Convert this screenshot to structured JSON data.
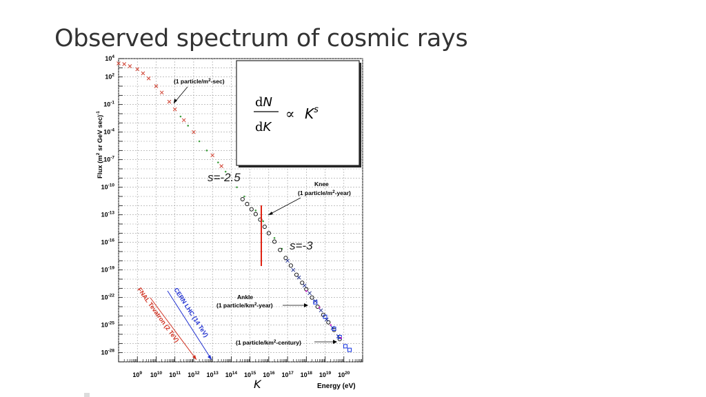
{
  "slide": {
    "title": "Observed spectrum of cosmic rays"
  },
  "chart_data": {
    "type": "scatter",
    "title": "",
    "xlabel": "Energy (eV)",
    "ylabel": "Flux (m² sr GeV sec)⁻¹",
    "x_scale": "log",
    "y_scale": "log",
    "xlim": [
      100000000.0,
      1e+21
    ],
    "ylim": [
      1e-29,
      10000.0
    ],
    "grid": true,
    "x_ticks": [
      "10^9",
      "10^10",
      "10^11",
      "10^12",
      "10^13",
      "10^14",
      "10^15",
      "10^16",
      "10^17",
      "10^18",
      "10^19",
      "10^20"
    ],
    "y_ticks": [
      "10^4",
      "10^2",
      "10^-1",
      "10^-4",
      "10^-7",
      "10^-10",
      "10^-13",
      "10^-16",
      "10^-19",
      "10^-22",
      "10^-25",
      "10^-28"
    ],
    "x_symbol": "K",
    "series": [
      {
        "color": "#d04030",
        "marker": "x",
        "points": [
          [
            100000000.0,
            3000
          ],
          [
            200000000.0,
            2500
          ],
          [
            400000000.0,
            1500
          ],
          [
            1000000000.0,
            700
          ],
          [
            2000000000.0,
            250
          ],
          [
            4000000000.0,
            70
          ],
          [
            10000000000.0,
            10
          ],
          [
            20000000000.0,
            2
          ],
          [
            50000000000.0,
            0.2
          ],
          [
            100000000000.0,
            0.03
          ],
          [
            300000000000.0,
            0.002
          ],
          [
            1000000000000.0,
            0.0001
          ],
          [
            10000000000000.0,
            3e-07
          ],
          [
            30000000000000.0,
            2e-08
          ]
        ]
      },
      {
        "color": "#40a040",
        "marker": "dot",
        "points": [
          [
            200000000000.0,
            0.005
          ],
          [
            500000000000.0,
            0.0005
          ],
          [
            2000000000000.0,
            1e-05
          ],
          [
            5000000000000.0,
            1e-06
          ],
          [
            20000000000000.0,
            5e-08
          ],
          [
            50000000000000.0,
            5e-09
          ],
          [
            200000000000000.0,
            1e-10
          ],
          [
            500000000000000.0,
            1e-11
          ],
          [
            2000000000000000.0,
            3e-13
          ],
          [
            5000000000000000.0,
            2e-14
          ],
          [
            2e+16,
            3e-16
          ],
          [
            5e+16,
            2e-17
          ]
        ]
      },
      {
        "color": "#000000",
        "marker": "circle",
        "points": [
          [
            400000000000000.0,
            5e-12
          ],
          [
            700000000000000.0,
            1.5e-12
          ],
          [
            1200000000000000.0,
            4e-13
          ],
          [
            2000000000000000.0,
            1.2e-13
          ],
          [
            3500000000000000.0,
            3e-14
          ],
          [
            6000000000000000.0,
            5e-15
          ],
          [
            1e+16,
            1e-15
          ],
          [
            2e+16,
            1.2e-16
          ],
          [
            4e+16,
            1.5e-17
          ],
          [
            8e+16,
            2e-18
          ],
          [
            1.5e+17,
            3e-19
          ],
          [
            3e+17,
            3e-20
          ],
          [
            6e+17,
            4e-21
          ],
          [
            1e+18,
            8e-22
          ],
          [
            2e+18,
            1e-22
          ],
          [
            4e+18,
            1e-23
          ],
          [
            8e+18,
            1.3e-24
          ],
          [
            1.5e+19,
            2e-25
          ],
          [
            3e+19,
            3e-26
          ],
          [
            6e+19,
            3e-27
          ]
        ]
      },
      {
        "color": "#203090",
        "marker": "x",
        "points": [
          [
            1e+17,
            1e-18
          ],
          [
            2e+17,
            1e-19
          ],
          [
            4e+17,
            1.5e-20
          ],
          [
            8e+17,
            2e-21
          ],
          [
            1.5e+18,
            3e-22
          ],
          [
            3e+18,
            4e-23
          ],
          [
            6e+18,
            4e-24
          ],
          [
            1.2e+19,
            4e-25
          ],
          [
            2.5e+19,
            5e-26
          ],
          [
            5e+19,
            6e-27
          ]
        ]
      },
      {
        "color": "#1030e0",
        "marker": "square",
        "points": [
          [
            3e+18,
            3e-23
          ],
          [
            1e+19,
            8e-25
          ],
          [
            3e+19,
            4e-26
          ],
          [
            6e+19,
            5e-27
          ],
          [
            1.2e+20,
            5e-28
          ],
          [
            2e+20,
            2e-28
          ]
        ]
      },
      {
        "color": "#c020c0",
        "marker": "dot",
        "points": [
          [
            1e+18,
            5e-22
          ],
          [
            5e+18,
            8e-24
          ],
          [
            2e+19,
            1e-25
          ],
          [
            7e+19,
            4e-27
          ]
        ]
      }
    ],
    "annotations": [
      {
        "text": "(1 particle/m²-sec)",
        "x": 120000000000.0,
        "y": 0.2
      },
      {
        "text": "Knee",
        "x": 5000000000000000.0,
        "y": 1e-13
      },
      {
        "text": "(1 particle/m²-year)",
        "x": 5000000000000000.0,
        "y": 1e-13
      },
      {
        "text": "Ankle",
        "x": 1e+19,
        "y": 3e-24
      },
      {
        "text": "(1 particle/km²-year)",
        "x": 1e+19,
        "y": 3e-24
      },
      {
        "text": "(1 particle/km²-century)",
        "x": 1e+20,
        "y": 3e-27
      }
    ],
    "reference_markers": [
      {
        "label": "FNAL Tevatron (2 TeV)",
        "energy": 2000000000000.0,
        "color": "#d03020"
      },
      {
        "label": "CERN LHC (14 TeV)",
        "energy": 14000000000000.0,
        "color": "#2030d0"
      }
    ]
  },
  "overlays": {
    "slope_1": "s=-2.5",
    "slope_2": "s=-3",
    "formula": {
      "num_d": "d",
      "num_var": "N",
      "den_d": "d",
      "den_var": "K",
      "prop": "∝",
      "rhs_base": "K",
      "rhs_exp": "s"
    },
    "knee_marker_color": "#e02010",
    "k_label": "K"
  },
  "texts": {
    "ylabel_base": "Flux (m",
    "ylabel_sup1": "2",
    "ylabel_mid": " sr GeV sec)",
    "ylabel_sup2": "-1",
    "xlabel": "Energy (eV)",
    "knee": "Knee",
    "knee_sub_a": "(1 particle/m",
    "knee_sub_sup": "2",
    "knee_sub_b": "-year)",
    "sec_a": "(1 particle/m",
    "sec_sup": "2",
    "sec_b": "-sec)",
    "ankle": "Ankle",
    "ankle_sub_a": "(1 particle/km",
    "ankle_sub_sup": "2",
    "ankle_sub_b": "-year)",
    "century": "(1 particle/km",
    "century_sup": "2",
    "century_b": "-century)",
    "tevatron": "FNAL Tevatron (2 TeV)",
    "lhc": "CERN LHC (14 TeV)"
  }
}
